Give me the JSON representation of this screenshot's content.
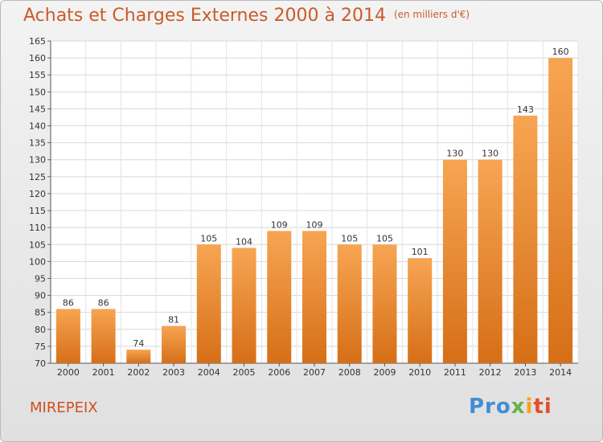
{
  "title": "Achats et Charges Externes 2000 à 2014",
  "unit": "(en milliers d'€)",
  "city": "MIREPEIX",
  "logo": {
    "p1": "Pro",
    "p2": "x",
    "p3": "i",
    "p4": "ti"
  },
  "colors": {
    "bar_light": "#f7a553",
    "bar_dark": "#d66f17",
    "title": "#ca5a2a",
    "city": "#d05020"
  },
  "chart_data": {
    "type": "bar",
    "title": "Achats et Charges Externes 2000 à 2014",
    "categories": [
      "2000",
      "2001",
      "2002",
      "2003",
      "2004",
      "2005",
      "2006",
      "2007",
      "2008",
      "2009",
      "2010",
      "2011",
      "2012",
      "2013",
      "2014"
    ],
    "values": [
      86,
      86,
      74,
      81,
      105,
      104,
      109,
      109,
      105,
      105,
      101,
      130,
      130,
      143,
      160
    ],
    "ylim": [
      70,
      165
    ],
    "yticks": [
      70,
      75,
      80,
      85,
      90,
      95,
      100,
      105,
      110,
      115,
      120,
      125,
      130,
      135,
      140,
      145,
      150,
      155,
      160,
      165
    ],
    "grid": true,
    "xlabel": "",
    "ylabel": ""
  }
}
